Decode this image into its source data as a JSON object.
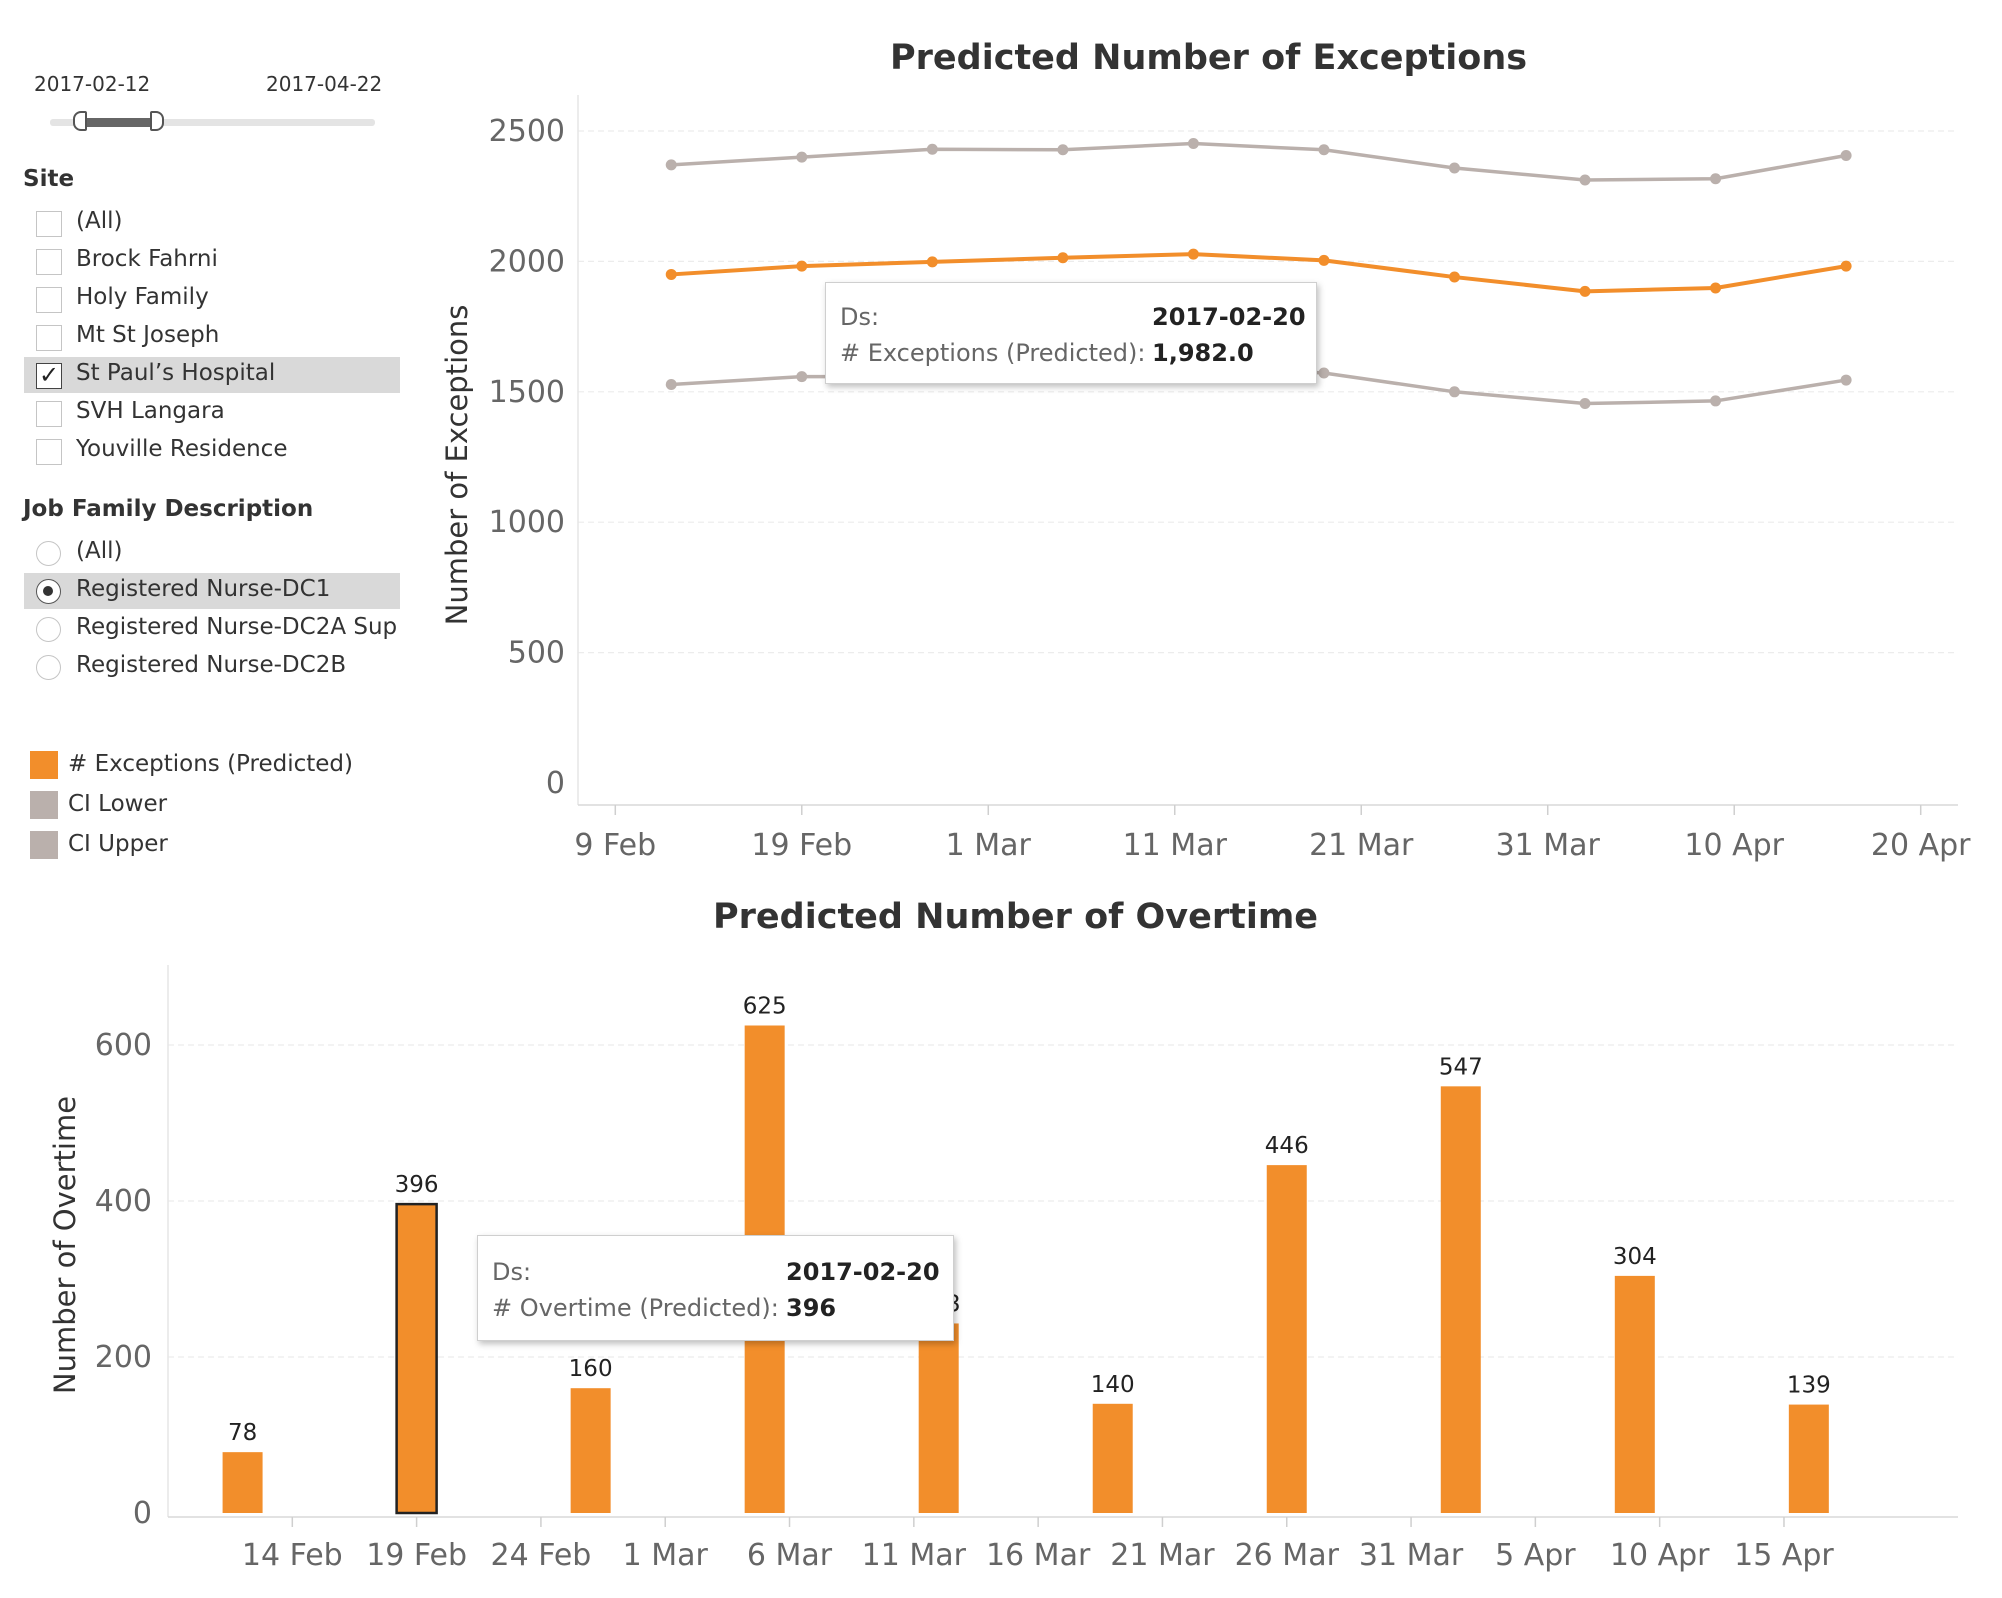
{
  "date_range": {
    "start": "2017-02-12",
    "end": "2017-04-22"
  },
  "site_filter": {
    "title": "Site",
    "items": [
      {
        "label": "(All)",
        "checked": false
      },
      {
        "label": "Brock Fahrni",
        "checked": false
      },
      {
        "label": "Holy Family",
        "checked": false
      },
      {
        "label": "Mt St Joseph",
        "checked": false
      },
      {
        "label": "St Paul’s Hospital",
        "checked": true
      },
      {
        "label": "SVH Langara",
        "checked": false
      },
      {
        "label": "Youville Residence",
        "checked": false
      }
    ]
  },
  "job_filter": {
    "title": "Job Family Description",
    "items": [
      {
        "label": "(All)",
        "selected": false
      },
      {
        "label": "Registered Nurse-DC1",
        "selected": true
      },
      {
        "label": "Registered Nurse-DC2A Sup",
        "selected": false
      },
      {
        "label": "Registered Nurse-DC2B",
        "selected": false
      }
    ]
  },
  "legend": {
    "items": [
      {
        "label": "# Exceptions (Predicted)",
        "color": "#f28e2b"
      },
      {
        "label": "CI Lower",
        "color": "#bab0ac"
      },
      {
        "label": "CI Upper",
        "color": "#bab0ac"
      }
    ]
  },
  "colors": {
    "predicted": "#f28e2b",
    "ci": "#bab0ac",
    "axis_text": "#666666"
  },
  "tooltip_exceptions": {
    "ds_key": "Ds:",
    "ds_value": "2017-02-20",
    "measure_key": "# Exceptions (Predicted):",
    "measure_value": "1,982.0"
  },
  "tooltip_overtime": {
    "ds_key": "Ds:",
    "ds_value": "2017-02-20",
    "measure_key": "# Overtime (Predicted):",
    "measure_value": "396"
  },
  "chart_data": [
    {
      "type": "line",
      "title": "Predicted  Number of Exceptions",
      "xlabel": "",
      "ylabel": "Number of Exceptions",
      "x_ticks": [
        "9 Feb",
        "19 Feb",
        "1 Mar",
        "11 Mar",
        "21 Mar",
        "31 Mar",
        "10 Apr",
        "20 Apr"
      ],
      "x_range": [
        "2017-02-07",
        "2017-04-22"
      ],
      "ylim": [
        0,
        2500
      ],
      "y_ticks": [
        0,
        500,
        1000,
        1500,
        2000,
        2500
      ],
      "grid": true,
      "x": [
        "2017-02-12",
        "2017-02-19",
        "2017-02-26",
        "2017-03-05",
        "2017-03-12",
        "2017-03-19",
        "2017-03-26",
        "2017-04-02",
        "2017-04-09",
        "2017-04-16"
      ],
      "series": [
        {
          "name": "CI Upper",
          "values": [
            2370,
            2400,
            2430,
            2428,
            2452,
            2428,
            2358,
            2312,
            2317,
            2406
          ]
        },
        {
          "name": "# Exceptions (Predicted)",
          "values": [
            1950,
            1982,
            1998,
            2014,
            2028,
            2004,
            1940,
            1885,
            1898,
            1982
          ]
        },
        {
          "name": "CI Lower",
          "values": [
            1528,
            1558,
            1558,
            1568,
            1600,
            1572,
            1500,
            1455,
            1465,
            1545
          ]
        }
      ]
    },
    {
      "type": "bar",
      "title": "Predicted Number of Overtime",
      "xlabel": "",
      "ylabel": "Number of Overtime",
      "x_ticks": [
        "14 Feb",
        "19 Feb",
        "24 Feb",
        "1 Mar",
        "6 Mar",
        "11 Mar",
        "16 Mar",
        "21 Mar",
        "26 Mar",
        "31 Mar",
        "5 Apr",
        "10 Apr",
        "15 Apr"
      ],
      "x_range": [
        "2017-02-09",
        "2017-04-22"
      ],
      "ylim": [
        0,
        700
      ],
      "y_ticks": [
        0,
        200,
        400,
        600
      ],
      "grid": true,
      "x": [
        "2017-02-12",
        "2017-02-19",
        "2017-02-26",
        "2017-03-05",
        "2017-03-12",
        "2017-03-19",
        "2017-03-26",
        "2017-04-02",
        "2017-04-09",
        "2017-04-16"
      ],
      "values": [
        78,
        396,
        160,
        625,
        243,
        140,
        446,
        547,
        304,
        139
      ],
      "labels": [
        "78",
        "396",
        "160",
        "625",
        "243",
        "140",
        "446",
        "547",
        "304",
        "139"
      ],
      "highlighted": "2017-02-19"
    }
  ]
}
